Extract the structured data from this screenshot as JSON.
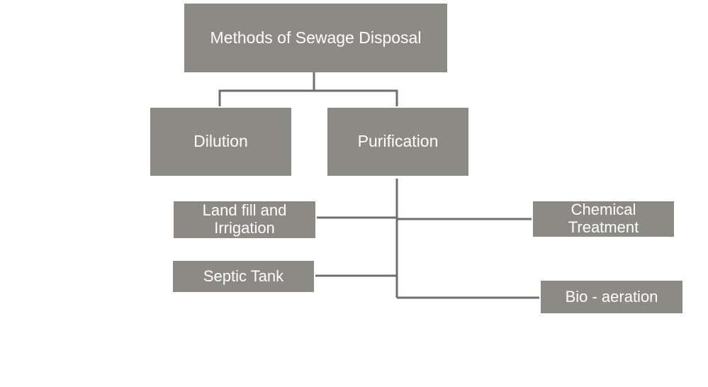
{
  "diagram": {
    "root": "Methods of Sewage Disposal",
    "level1": {
      "dilution": "Dilution",
      "purification": "Purification"
    },
    "purification_children": {
      "landfill_line1": "Land fill and",
      "landfill_line2": "Irrigation",
      "septic": "Septic Tank",
      "chemical_line1": "Chemical",
      "chemical_line2": "Treatment",
      "bio": "Bio - aeration"
    }
  },
  "colors": {
    "box_fill": "#8b8a84",
    "box_text": "#ffffff",
    "connector": "#6e6e6e",
    "background": "#ffffff"
  }
}
